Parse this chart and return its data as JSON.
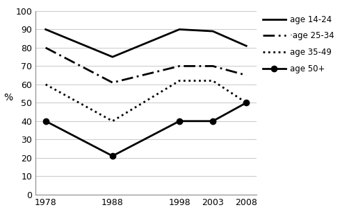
{
  "years": [
    1978,
    1988,
    1998,
    2003,
    2008
  ],
  "series": [
    {
      "label": "age 14-24",
      "values": [
        90,
        75,
        90,
        89,
        81
      ],
      "linestyle": "-",
      "marker": "None",
      "linewidth": 2.0,
      "color": "#000000",
      "markersize": 0,
      "dashes": []
    },
    {
      "label": "age 25-34",
      "values": [
        80,
        61,
        70,
        70,
        65
      ],
      "linestyle": "--",
      "marker": "None",
      "linewidth": 2.0,
      "color": "#000000",
      "markersize": 0,
      "dashes": [
        6,
        2,
        1,
        2
      ]
    },
    {
      "label": "age 35-49",
      "values": [
        60,
        40,
        62,
        62,
        50
      ],
      "linestyle": ":",
      "marker": "None",
      "linewidth": 2.0,
      "color": "#000000",
      "markersize": 0,
      "dashes": []
    },
    {
      "label": "age 50+",
      "values": [
        40,
        21,
        40,
        40,
        50
      ],
      "linestyle": "-",
      "marker": "o",
      "linewidth": 2.0,
      "color": "#000000",
      "markersize": 6,
      "dashes": []
    }
  ],
  "ylabel": "%",
  "ylim": [
    0,
    100
  ],
  "yticks": [
    0,
    10,
    20,
    30,
    40,
    50,
    60,
    70,
    80,
    90,
    100
  ],
  "xticks": [
    1978,
    1988,
    1998,
    2003,
    2008
  ],
  "background_color": "#ffffff",
  "grid_color": "#c8c8c8",
  "legend_entries": [
    {
      "label": "age 14-24",
      "linestyle": "-",
      "marker": "None",
      "dashes": []
    },
    {
      "label": "·age 25-34",
      "linestyle": "--",
      "marker": "None",
      "dashes": [
        6,
        2,
        1,
        2
      ]
    },
    {
      "label": "age 35-49",
      "linestyle": ":",
      "marker": "None",
      "dashes": []
    },
    {
      "label": "age 50+",
      "linestyle": "-",
      "marker": "o",
      "dashes": []
    }
  ]
}
